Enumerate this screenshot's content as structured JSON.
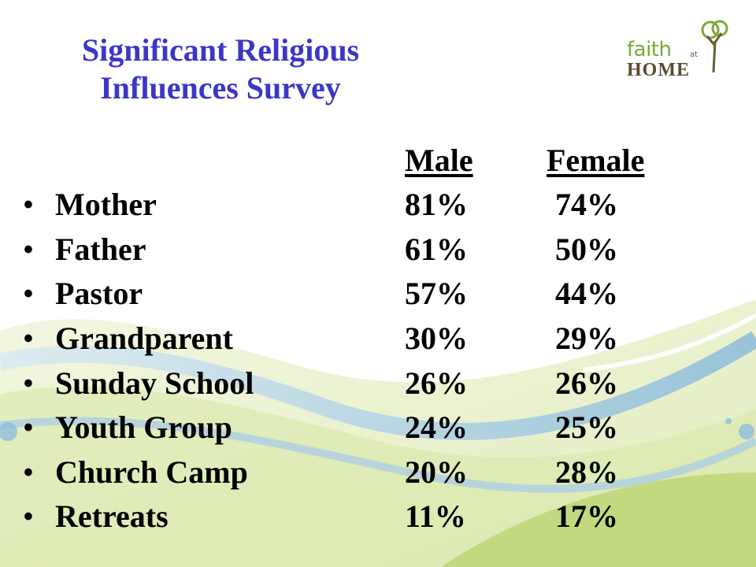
{
  "slide": {
    "title_line1": "Significant Religious",
    "title_line2": "Influences Survey",
    "logo": {
      "text_faith": "faith",
      "text_at": "at",
      "text_home": "HOME",
      "icon": "tree-icon"
    },
    "columns": {
      "male": "Male",
      "female": "Female"
    },
    "rows": [
      {
        "label": "Mother",
        "male": "81%",
        "female": "74%"
      },
      {
        "label": "Father",
        "male": "61%",
        "female": "50%"
      },
      {
        "label": "Pastor",
        "male": "57%",
        "female": "44%"
      },
      {
        "label": "Grandparent",
        "male": "30%",
        "female": "29%"
      },
      {
        "label": "Sunday School",
        "male": "26%",
        "female": "26%"
      },
      {
        "label": "Youth Group",
        "male": "24%",
        "female": "25%"
      },
      {
        "label": "Church Camp",
        "male": "20%",
        "female": "28%"
      },
      {
        "label": "Retreats",
        "male": "11%",
        "female": "17%"
      }
    ],
    "bullet": "•",
    "colors": {
      "title": "#3a37c8",
      "text": "#000000",
      "wave_green": "#c8dc8a",
      "wave_blue": "#8fbde0"
    }
  }
}
